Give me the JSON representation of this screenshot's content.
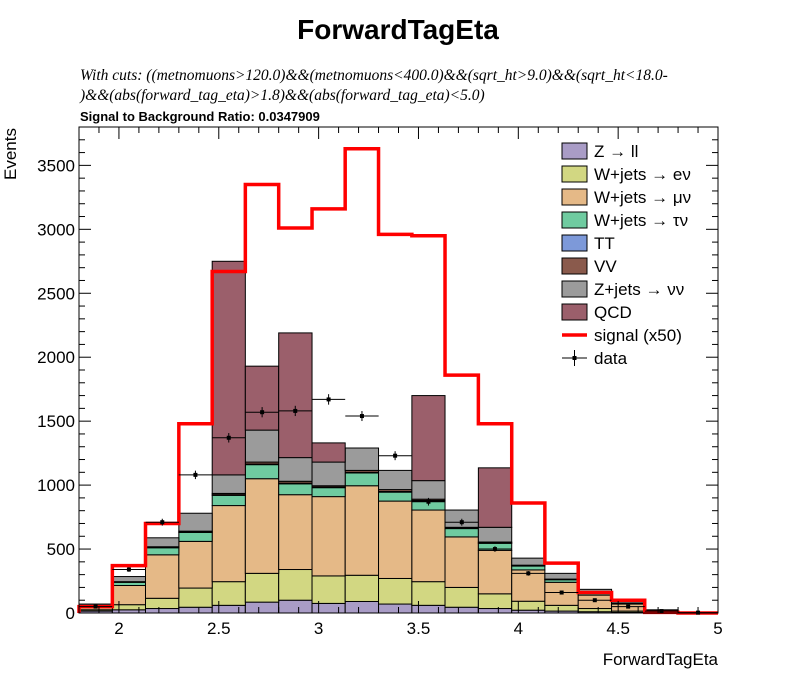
{
  "chart_data": {
    "type": "bar",
    "title": "ForwardTagEta",
    "cuts_line1": "With cuts: ((metnomuons>120.0)&&(metnomuons<400.0)&&(sqrt_ht>9.0)&&(sqrt_ht<18.0-",
    "cuts_line2": ")&&(abs(forward_tag_eta)>1.8)&&(abs(forward_tag_eta)<5.0)",
    "ratio_text": "Signal to Background Ratio: 0.0347909",
    "xlabel": "ForwardTagEta",
    "ylabel": "Events",
    "xlim": [
      1.8,
      5.0
    ],
    "ylim": [
      0,
      3800
    ],
    "xticks": [
      "2",
      "2.5",
      "3",
      "3.5",
      "4",
      "4.5",
      "5"
    ],
    "yticks": [
      "0",
      "500",
      "1000",
      "1500",
      "2000",
      "2500",
      "3000",
      "3500"
    ],
    "bin_edges": [
      1.8,
      1.967,
      2.133,
      2.3,
      2.467,
      2.633,
      2.8,
      2.967,
      3.133,
      3.3,
      3.467,
      3.633,
      3.8,
      3.967,
      4.133,
      4.3,
      4.467,
      4.633,
      4.8,
      5.0
    ],
    "stack": [
      {
        "name": "Z → ll",
        "color": "#a99cc6",
        "values": [
          15,
          25,
          35,
          45,
          60,
          85,
          100,
          75,
          90,
          70,
          60,
          45,
          35,
          22,
          15,
          10,
          5,
          2,
          0
        ]
      },
      {
        "name": "W+jets → eν",
        "color": "#d2d782",
        "values": [
          10,
          40,
          80,
          150,
          185,
          225,
          240,
          215,
          205,
          200,
          185,
          155,
          115,
          70,
          45,
          25,
          10,
          3,
          0
        ]
      },
      {
        "name": "W+jets → μν",
        "color": "#e5b987",
        "values": [
          30,
          150,
          340,
          365,
          595,
          740,
          585,
          620,
          700,
          605,
          560,
          395,
          340,
          245,
          180,
          105,
          55,
          15,
          5
        ]
      },
      {
        "name": "W+jets → τν",
        "color": "#6fcba0",
        "values": [
          5,
          25,
          55,
          70,
          80,
          110,
          85,
          70,
          100,
          70,
          70,
          65,
          55,
          30,
          20,
          15,
          7,
          2,
          0
        ]
      },
      {
        "name": "TT",
        "color": "#7d99d9",
        "values": [
          0,
          2,
          3,
          3,
          5,
          5,
          5,
          5,
          5,
          5,
          5,
          3,
          3,
          2,
          2,
          1,
          0,
          0,
          0
        ]
      },
      {
        "name": "VV",
        "color": "#8a5a4c",
        "values": [
          0,
          3,
          5,
          7,
          10,
          15,
          15,
          10,
          15,
          15,
          10,
          7,
          7,
          5,
          3,
          2,
          1,
          0,
          0
        ]
      },
      {
        "name": "Z+jets → νν",
        "color": "#9b9b9b",
        "values": [
          10,
          40,
          70,
          140,
          145,
          250,
          185,
          185,
          175,
          150,
          145,
          135,
          115,
          55,
          45,
          27,
          12,
          3,
          0
        ]
      },
      {
        "name": "QCD",
        "color": "#9b5f6b",
        "values": [
          0,
          0,
          0,
          0,
          1670,
          500,
          975,
          150,
          0,
          0,
          665,
          0,
          465,
          0,
          0,
          0,
          0,
          0,
          0
        ]
      }
    ],
    "signal": {
      "name": "signal (x50)",
      "color": "#ff0000",
      "values": [
        50,
        370,
        700,
        1480,
        2670,
        3350,
        3010,
        3160,
        3630,
        2960,
        2950,
        1860,
        1480,
        860,
        390,
        160,
        100,
        5,
        0
      ]
    },
    "data": {
      "name": "data",
      "x": [
        1.883,
        2.05,
        2.217,
        2.383,
        2.55,
        2.717,
        2.883,
        3.05,
        3.217,
        3.383,
        3.55,
        3.717,
        3.883,
        4.05,
        4.217,
        4.383,
        4.55,
        4.717,
        4.9
      ],
      "y": [
        50,
        340,
        710,
        1080,
        1370,
        1570,
        1580,
        1670,
        1540,
        1230,
        870,
        710,
        500,
        310,
        160,
        100,
        50,
        15,
        3
      ],
      "yerr": [
        7,
        18,
        27,
        33,
        37,
        40,
        40,
        41,
        39,
        35,
        30,
        27,
        22,
        18,
        13,
        10,
        7,
        4,
        2
      ]
    }
  }
}
